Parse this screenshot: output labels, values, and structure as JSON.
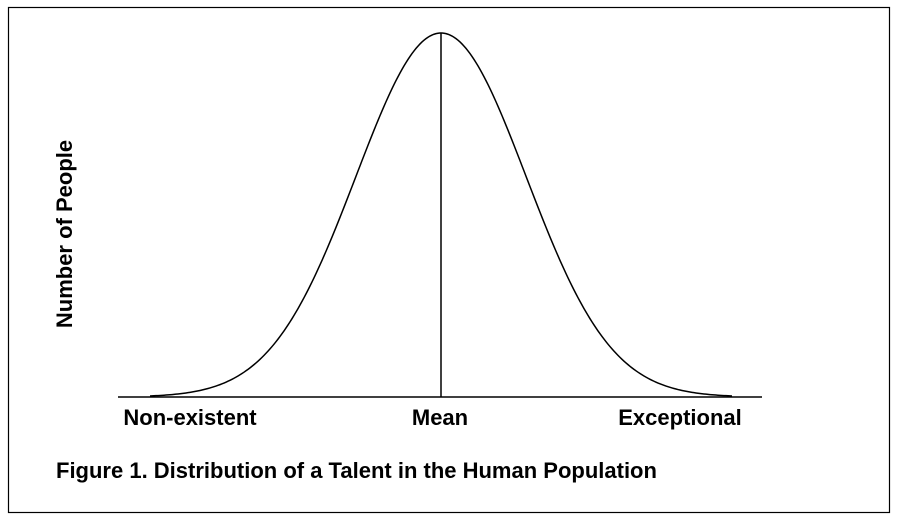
{
  "diagram": {
    "y_axis_label": "Number of People",
    "x_labels": [
      "Non-existent",
      "Mean",
      "Exceptional"
    ],
    "caption": "Figure 1.  Distribution of a Talent in the Human Population"
  }
}
